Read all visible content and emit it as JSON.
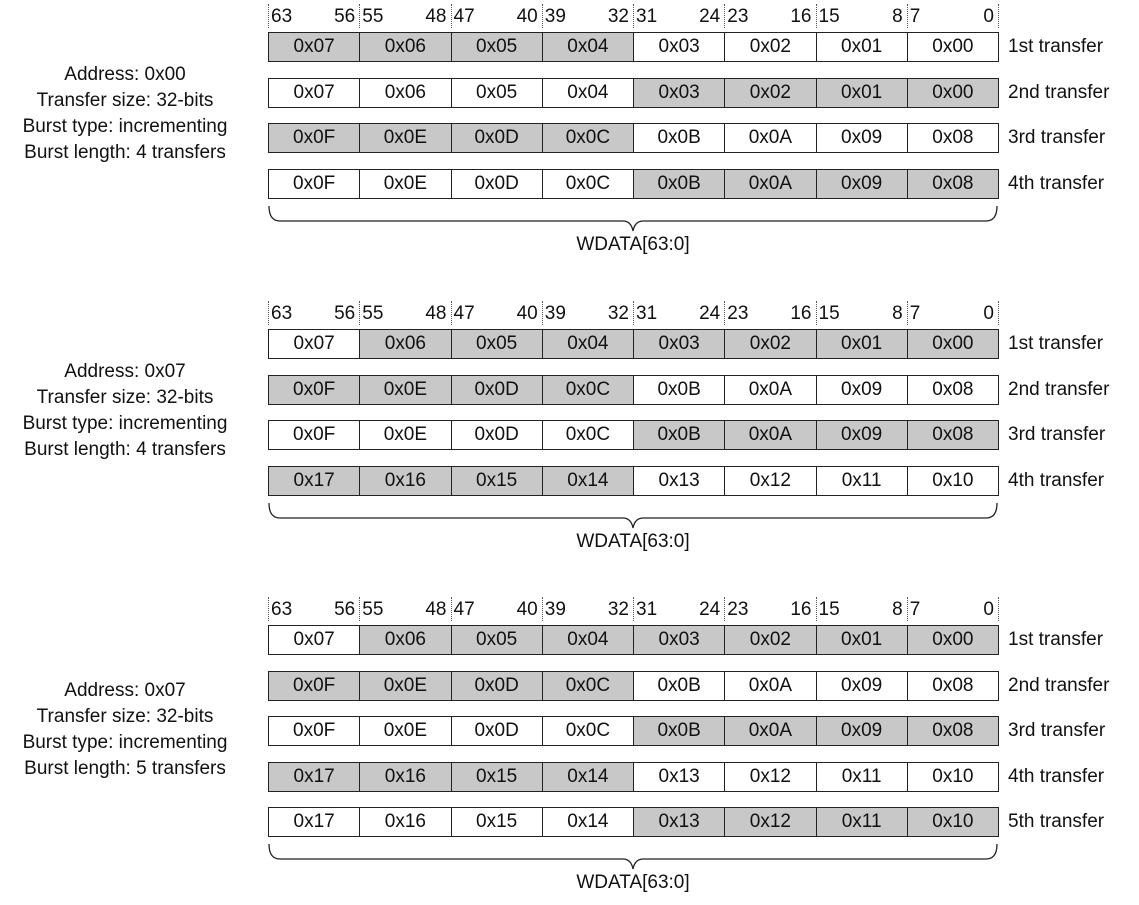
{
  "bit_ranges": [
    {
      "hi": "63",
      "lo": "56"
    },
    {
      "hi": "55",
      "lo": "48"
    },
    {
      "hi": "47",
      "lo": "40"
    },
    {
      "hi": "39",
      "lo": "32"
    },
    {
      "hi": "31",
      "lo": "24"
    },
    {
      "hi": "23",
      "lo": "16"
    },
    {
      "hi": "15",
      "lo": "8"
    },
    {
      "hi": "7",
      "lo": "0"
    }
  ],
  "bus_label": "WDATA[63:0]",
  "colors": {
    "active_byte": "#c8c8c8",
    "inactive_byte": "#ffffff",
    "border": "#222222"
  },
  "sections": [
    {
      "info": [
        "Address: 0x00",
        "Transfer size: 32-bits",
        "Burst type: incrementing",
        "Burst length: 4 transfers"
      ],
      "rows": [
        {
          "label": "1st transfer",
          "bytes": [
            "0x07",
            "0x06",
            "0x05",
            "0x04",
            "0x03",
            "0x02",
            "0x01",
            "0x00"
          ],
          "active": [
            true,
            true,
            true,
            true,
            false,
            false,
            false,
            false
          ]
        },
        {
          "label": "2nd transfer",
          "bytes": [
            "0x07",
            "0x06",
            "0x05",
            "0x04",
            "0x03",
            "0x02",
            "0x01",
            "0x00"
          ],
          "active": [
            false,
            false,
            false,
            false,
            true,
            true,
            true,
            true
          ]
        },
        {
          "label": "3rd transfer",
          "bytes": [
            "0x0F",
            "0x0E",
            "0x0D",
            "0x0C",
            "0x0B",
            "0x0A",
            "0x09",
            "0x08"
          ],
          "active": [
            true,
            true,
            true,
            true,
            false,
            false,
            false,
            false
          ]
        },
        {
          "label": "4th transfer",
          "bytes": [
            "0x0F",
            "0x0E",
            "0x0D",
            "0x0C",
            "0x0B",
            "0x0A",
            "0x09",
            "0x08"
          ],
          "active": [
            false,
            false,
            false,
            false,
            true,
            true,
            true,
            true
          ]
        }
      ]
    },
    {
      "info": [
        "Address: 0x07",
        "Transfer size: 32-bits",
        "Burst type: incrementing",
        "Burst length: 4 transfers"
      ],
      "rows": [
        {
          "label": "1st transfer",
          "bytes": [
            "0x07",
            "0x06",
            "0x05",
            "0x04",
            "0x03",
            "0x02",
            "0x01",
            "0x00"
          ],
          "active": [
            false,
            true,
            true,
            true,
            true,
            true,
            true,
            true
          ]
        },
        {
          "label": "2nd transfer",
          "bytes": [
            "0x0F",
            "0x0E",
            "0x0D",
            "0x0C",
            "0x0B",
            "0x0A",
            "0x09",
            "0x08"
          ],
          "active": [
            true,
            true,
            true,
            true,
            false,
            false,
            false,
            false
          ]
        },
        {
          "label": "3rd transfer",
          "bytes": [
            "0x0F",
            "0x0E",
            "0x0D",
            "0x0C",
            "0x0B",
            "0x0A",
            "0x09",
            "0x08"
          ],
          "active": [
            false,
            false,
            false,
            false,
            true,
            true,
            true,
            true
          ]
        },
        {
          "label": "4th transfer",
          "bytes": [
            "0x17",
            "0x16",
            "0x15",
            "0x14",
            "0x13",
            "0x12",
            "0x11",
            "0x10"
          ],
          "active": [
            true,
            true,
            true,
            true,
            false,
            false,
            false,
            false
          ]
        }
      ]
    },
    {
      "info": [
        "Address: 0x07",
        "Transfer size: 32-bits",
        "Burst type: incrementing",
        "Burst length: 5 transfers"
      ],
      "rows": [
        {
          "label": "1st transfer",
          "bytes": [
            "0x07",
            "0x06",
            "0x05",
            "0x04",
            "0x03",
            "0x02",
            "0x01",
            "0x00"
          ],
          "active": [
            false,
            true,
            true,
            true,
            true,
            true,
            true,
            true
          ]
        },
        {
          "label": "2nd transfer",
          "bytes": [
            "0x0F",
            "0x0E",
            "0x0D",
            "0x0C",
            "0x0B",
            "0x0A",
            "0x09",
            "0x08"
          ],
          "active": [
            true,
            true,
            true,
            true,
            false,
            false,
            false,
            false
          ]
        },
        {
          "label": "3rd transfer",
          "bytes": [
            "0x0F",
            "0x0E",
            "0x0D",
            "0x0C",
            "0x0B",
            "0x0A",
            "0x09",
            "0x08"
          ],
          "active": [
            false,
            false,
            false,
            false,
            true,
            true,
            true,
            true
          ]
        },
        {
          "label": "4th transfer",
          "bytes": [
            "0x17",
            "0x16",
            "0x15",
            "0x14",
            "0x13",
            "0x12",
            "0x11",
            "0x10"
          ],
          "active": [
            true,
            true,
            true,
            true,
            false,
            false,
            false,
            false
          ]
        },
        {
          "label": "5th transfer",
          "bytes": [
            "0x17",
            "0x16",
            "0x15",
            "0x14",
            "0x13",
            "0x12",
            "0x11",
            "0x10"
          ],
          "active": [
            false,
            false,
            false,
            false,
            true,
            true,
            true,
            true
          ]
        }
      ]
    }
  ]
}
